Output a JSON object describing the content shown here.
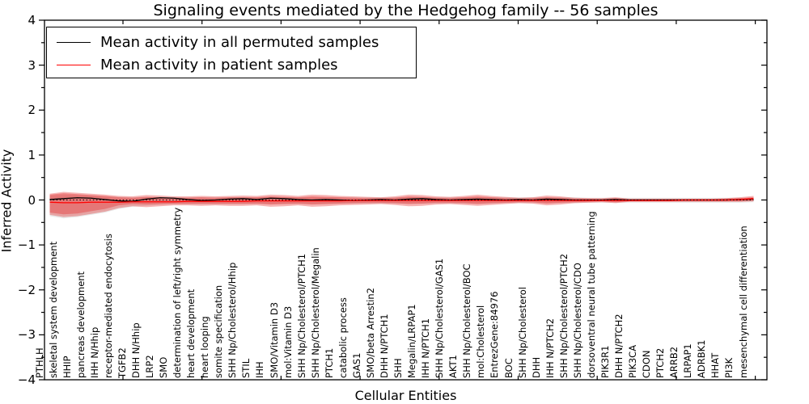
{
  "title": "Signaling events mediated by the Hedgehog family -- 56 samples",
  "axes": {
    "ylabel": "Inferred Activity",
    "xlabel": "Cellular Entities",
    "yticks": [
      4,
      3,
      2,
      1,
      0,
      -1,
      -2,
      -3,
      -4
    ],
    "ylim": [
      -4,
      4
    ]
  },
  "legend": [
    {
      "label": "Mean activity in all permuted samples",
      "color": "#000000"
    },
    {
      "label": "Mean activity in patient samples",
      "color": "#ff0000"
    }
  ],
  "colors": {
    "permuted_line": "#000000",
    "patient_line": "#ff0000",
    "patient_band": "rgba(228,26,28,0.33)",
    "permuted_band": "rgba(0,0,0,0.09)",
    "frame": "#000000"
  },
  "chart_data": {
    "type": "line",
    "title": "Signaling events mediated by the Hedgehog family -- 56 samples",
    "xlabel": "Cellular Entities",
    "ylabel": "Inferred Activity",
    "ylim": [
      -4,
      4
    ],
    "grid": false,
    "legend_position": "upper left",
    "categories": [
      "PTHLH",
      "skeletal system development",
      "HHIP",
      "pancreas development",
      "IHH N/Hhip",
      "receptor-mediated endocytosis",
      "TGFB2",
      "DHH N/Hhip",
      "LRP2",
      "SMO",
      "determination of left/right symmetry",
      "heart development",
      "heart looping",
      "somite specification",
      "SHH Np/Cholesterol/Hhip",
      "STIL",
      "IHH",
      "SMO/Vitamin D3",
      "mol:Vitamin D3",
      "SHH Np/Cholesterol/PTCH1",
      "SHH Np/Cholesterol/Megalin",
      "PTCH1",
      "catabolic process",
      "GAS1",
      "SMO/beta Arrestin2",
      "DHH N/PTCH1",
      "SHH",
      "Megalin/LRPAP1",
      "IHH N/PTCH1",
      "SHH Np/Cholesterol/GAS1",
      "AKT1",
      "SHH Np/Cholesterol/BOC",
      "mol:Cholesterol",
      "EntrezGene:84976",
      "BOC",
      "SHH Np/Cholesterol",
      "DHH",
      "IHH N/PTCH2",
      "SHH Np/Cholesterol/PTCH2",
      "SHH Np/Cholesterol/CDO",
      "dorsoventral neural tube patterning",
      "PIK3R1",
      "DHH N/PTCH2",
      "PIK3CA",
      "CDON",
      "PTCH2",
      "ARRB2",
      "LRPAP1",
      "ADRBK1",
      "HHAT",
      "PI3K",
      "mesenchymal cell differentiation"
    ],
    "series": [
      {
        "name": "Mean activity in all permuted samples",
        "color": "#000000",
        "style": "solid",
        "values": [
          0.01,
          0.03,
          0.05,
          0.04,
          0.01,
          -0.02,
          -0.03,
          0.02,
          0.05,
          0.04,
          0.01,
          -0.01,
          0.0,
          0.02,
          0.03,
          0.01,
          0.04,
          0.03,
          0.01,
          0.0,
          0.01,
          0.0,
          -0.01,
          0.0,
          0.01,
          0.0,
          0.02,
          0.03,
          0.01,
          0.0,
          0.01,
          0.02,
          0.01,
          0.0,
          0.01,
          0.0,
          0.02,
          0.01,
          0.0,
          0.0,
          0.0,
          0.01,
          0.0,
          0.0,
          0.0,
          0.0,
          0.0,
          0.0,
          0.0,
          0.0,
          0.01,
          0.02
        ]
      },
      {
        "name": "Mean activity in patient samples",
        "color": "#ff0000",
        "style": "solid",
        "values": [
          -0.05,
          -0.06,
          -0.06,
          -0.05,
          -0.05,
          -0.05,
          -0.04,
          -0.04,
          -0.04,
          -0.04,
          -0.03,
          -0.03,
          -0.03,
          -0.03,
          -0.03,
          -0.02,
          -0.02,
          -0.02,
          -0.02,
          -0.02,
          -0.02,
          -0.02,
          -0.01,
          -0.01,
          -0.01,
          -0.01,
          -0.01,
          -0.01,
          -0.01,
          -0.01,
          -0.01,
          -0.01,
          -0.01,
          -0.01,
          -0.01,
          -0.01,
          -0.01,
          -0.01,
          -0.01,
          -0.01,
          -0.01,
          -0.01,
          -0.01,
          -0.01,
          -0.01,
          -0.01,
          0.0,
          0.0,
          0.0,
          0.0,
          0.01,
          0.03
        ]
      },
      {
        "name": "zero baseline",
        "color": "#000000",
        "style": "dotted",
        "values": [
          0,
          0,
          0,
          0,
          0,
          0,
          0,
          0,
          0,
          0,
          0,
          0,
          0,
          0,
          0,
          0,
          0,
          0,
          0,
          0,
          0,
          0,
          0,
          0,
          0,
          0,
          0,
          0,
          0,
          0,
          0,
          0,
          0,
          0,
          0,
          0,
          0,
          0,
          0,
          0,
          0,
          0,
          0,
          0,
          0,
          0,
          0,
          0,
          0,
          0,
          0,
          0
        ]
      }
    ],
    "bands": [
      {
        "name": "permuted sample range",
        "color": "rgba(0,0,0,0.09)",
        "top": [
          0.1,
          0.12,
          0.11,
          0.1,
          0.08,
          0.07,
          0.06,
          0.07,
          0.06,
          0.06,
          0.06,
          0.06,
          0.06,
          0.06,
          0.06,
          0.06,
          0.06,
          0.06,
          0.06,
          0.06,
          0.06,
          0.06,
          0.06,
          0.06,
          0.06,
          0.06,
          0.06,
          0.06,
          0.06,
          0.06,
          0.06,
          0.06,
          0.06,
          0.06,
          0.06,
          0.06,
          0.06,
          0.06,
          0.06,
          0.05,
          0.05,
          0.05,
          0.05,
          0.05,
          0.05,
          0.05,
          0.05,
          0.05,
          0.05,
          0.05,
          0.05,
          0.05
        ],
        "bottom": [
          -0.36,
          -0.41,
          -0.38,
          -0.33,
          -0.28,
          -0.2,
          -0.15,
          -0.13,
          -0.11,
          -0.1,
          -0.1,
          -0.1,
          -0.1,
          -0.1,
          -0.1,
          -0.09,
          -0.09,
          -0.09,
          -0.09,
          -0.09,
          -0.09,
          -0.08,
          -0.08,
          -0.08,
          -0.08,
          -0.08,
          -0.08,
          -0.08,
          -0.08,
          -0.08,
          -0.08,
          -0.08,
          -0.08,
          -0.07,
          -0.07,
          -0.07,
          -0.07,
          -0.07,
          -0.07,
          -0.06,
          -0.06,
          -0.06,
          -0.06,
          -0.06,
          -0.06,
          -0.06,
          -0.06,
          -0.06,
          -0.06,
          -0.06,
          -0.06,
          -0.05
        ]
      },
      {
        "name": "patient range outer",
        "color": "rgba(228,26,28,0.33)",
        "top": [
          0.14,
          0.18,
          0.16,
          0.14,
          0.12,
          0.09,
          0.08,
          0.11,
          0.1,
          0.08,
          0.08,
          0.09,
          0.08,
          0.09,
          0.1,
          0.09,
          0.12,
          0.11,
          0.09,
          0.12,
          0.11,
          0.09,
          0.08,
          0.07,
          0.06,
          0.08,
          0.12,
          0.11,
          0.08,
          0.07,
          0.09,
          0.12,
          0.09,
          0.07,
          0.05,
          0.06,
          0.1,
          0.08,
          0.05,
          0.04,
          0.04,
          0.06,
          0.03,
          0.03,
          0.03,
          0.03,
          0.03,
          0.03,
          0.03,
          0.04,
          0.06,
          0.09
        ],
        "bottom": [
          -0.33,
          -0.38,
          -0.36,
          -0.31,
          -0.26,
          -0.18,
          -0.14,
          -0.16,
          -0.14,
          -0.12,
          -0.12,
          -0.13,
          -0.12,
          -0.13,
          -0.13,
          -0.12,
          -0.15,
          -0.14,
          -0.12,
          -0.15,
          -0.14,
          -0.12,
          -0.11,
          -0.1,
          -0.09,
          -0.11,
          -0.14,
          -0.13,
          -0.1,
          -0.09,
          -0.11,
          -0.13,
          -0.11,
          -0.09,
          -0.07,
          -0.08,
          -0.12,
          -0.1,
          -0.07,
          -0.06,
          -0.05,
          -0.07,
          -0.04,
          -0.04,
          -0.04,
          -0.04,
          -0.04,
          -0.04,
          -0.04,
          -0.04,
          -0.04,
          -0.03
        ]
      },
      {
        "name": "patient range inner",
        "color": "rgba(228,26,28,0.33)",
        "top": [
          0.12,
          0.15,
          0.13,
          0.11,
          0.09,
          0.06,
          0.05,
          0.07,
          0.06,
          0.05,
          0.05,
          0.06,
          0.05,
          0.06,
          0.06,
          0.06,
          0.08,
          0.07,
          0.06,
          0.08,
          0.07,
          0.06,
          0.05,
          0.04,
          0.04,
          0.05,
          0.08,
          0.07,
          0.05,
          0.04,
          0.06,
          0.08,
          0.06,
          0.04,
          0.03,
          0.04,
          0.06,
          0.05,
          0.03,
          0.03,
          0.02,
          0.04,
          0.02,
          0.02,
          0.02,
          0.02,
          0.02,
          0.02,
          0.02,
          0.03,
          0.04,
          0.06
        ],
        "bottom": [
          -0.28,
          -0.32,
          -0.3,
          -0.25,
          -0.2,
          -0.12,
          -0.09,
          -0.1,
          -0.09,
          -0.08,
          -0.08,
          -0.08,
          -0.08,
          -0.08,
          -0.08,
          -0.08,
          -0.1,
          -0.09,
          -0.08,
          -0.1,
          -0.09,
          -0.08,
          -0.07,
          -0.06,
          -0.06,
          -0.07,
          -0.09,
          -0.08,
          -0.06,
          -0.06,
          -0.07,
          -0.09,
          -0.07,
          -0.06,
          -0.05,
          -0.05,
          -0.08,
          -0.06,
          -0.05,
          -0.04,
          -0.03,
          -0.05,
          -0.03,
          -0.03,
          -0.03,
          -0.03,
          -0.03,
          -0.03,
          -0.03,
          -0.03,
          -0.03,
          -0.02
        ]
      }
    ]
  }
}
